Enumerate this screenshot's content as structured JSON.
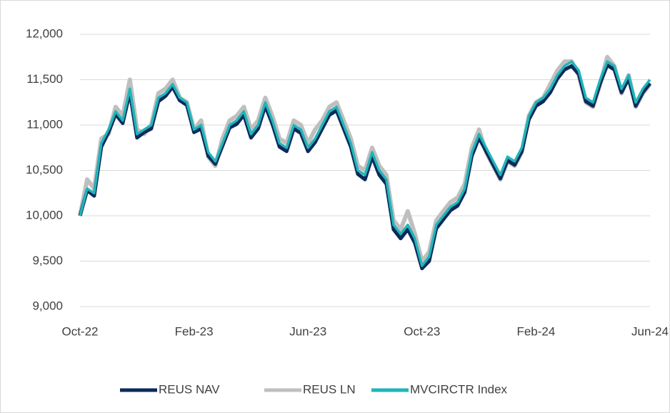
{
  "chart_data": {
    "type": "line",
    "categories": [
      "Oct-22",
      null,
      null,
      null,
      null,
      null,
      null,
      null,
      null,
      null,
      null,
      null,
      null,
      null,
      null,
      null,
      "Feb-23",
      null,
      null,
      null,
      null,
      null,
      null,
      null,
      null,
      null,
      null,
      null,
      null,
      null,
      null,
      null,
      "Jun-23",
      null,
      null,
      null,
      null,
      null,
      null,
      null,
      null,
      null,
      null,
      null,
      null,
      null,
      null,
      null,
      "Oct-23",
      null,
      null,
      null,
      null,
      null,
      null,
      null,
      null,
      null,
      null,
      null,
      null,
      null,
      null,
      null,
      "Feb-24",
      null,
      null,
      null,
      null,
      null,
      null,
      null,
      null,
      null,
      null,
      null,
      null,
      null,
      null,
      null,
      "Jun-24"
    ],
    "series": [
      {
        "name": "REUS LN",
        "color": "#bfbfbf",
        "values": [
          10000,
          10400,
          10300,
          10850,
          10900,
          11200,
          11100,
          11500,
          10950,
          10900,
          11000,
          11350,
          11400,
          11500,
          11300,
          11250,
          10950,
          11050,
          10650,
          10550,
          10850,
          11050,
          11100,
          11200,
          10950,
          11050,
          11300,
          11100,
          10850,
          10800,
          11050,
          11000,
          10800,
          10950,
          11050,
          11200,
          11250,
          11050,
          10850,
          10550,
          10500,
          10750,
          10550,
          10450,
          9950,
          9850,
          10050,
          9800,
          9500,
          9600,
          9950,
          10050,
          10150,
          10200,
          10350,
          10750,
          10950,
          10700,
          10550,
          10400,
          10600,
          10550,
          10700,
          11100,
          11250,
          11300,
          11450,
          11600,
          11700,
          11700,
          11550,
          11250,
          11200,
          11450,
          11750,
          11650,
          11350,
          11550,
          11200,
          11350,
          11450
        ]
      },
      {
        "name": "REUS NAV",
        "color": "#0b2a5b",
        "values": [
          10000,
          10280,
          10220,
          10760,
          10920,
          11120,
          11020,
          11360,
          10860,
          10920,
          10960,
          11260,
          11320,
          11420,
          11270,
          11220,
          10920,
          10960,
          10660,
          10570,
          10770,
          10970,
          11010,
          11110,
          10860,
          10960,
          11210,
          11010,
          10760,
          10710,
          10960,
          10910,
          10710,
          10810,
          10960,
          11110,
          11160,
          10960,
          10760,
          10460,
          10400,
          10650,
          10450,
          10350,
          9850,
          9750,
          9850,
          9700,
          9420,
          9500,
          9860,
          9960,
          10060,
          10110,
          10260,
          10660,
          10860,
          10710,
          10560,
          10410,
          10610,
          10560,
          10710,
          11060,
          11210,
          11260,
          11360,
          11510,
          11610,
          11650,
          11560,
          11260,
          11210,
          11460,
          11660,
          11610,
          11360,
          11510,
          11210,
          11360,
          11460
        ]
      },
      {
        "name": "MVCIRCTR Index",
        "color": "#20b5b8",
        "values": [
          10000,
          10300,
          10250,
          10800,
          10950,
          11150,
          11050,
          11400,
          10900,
          10950,
          11000,
          11300,
          11350,
          11450,
          11300,
          11250,
          10950,
          11000,
          10700,
          10600,
          10800,
          11000,
          11050,
          11150,
          10900,
          11000,
          11250,
          11050,
          10800,
          10750,
          11000,
          10950,
          10750,
          10850,
          11000,
          11150,
          11200,
          11000,
          10800,
          10500,
          10450,
          10700,
          10500,
          10400,
          9900,
          9800,
          9900,
          9750,
          9450,
          9550,
          9900,
          10000,
          10100,
          10150,
          10300,
          10700,
          10900,
          10750,
          10600,
          10450,
          10650,
          10600,
          10750,
          11100,
          11250,
          11300,
          11400,
          11550,
          11650,
          11700,
          11600,
          11300,
          11250,
          11500,
          11700,
          11650,
          11400,
          11550,
          11250,
          11400,
          11500
        ]
      }
    ],
    "ylim": [
      9000,
      12000
    ],
    "yticks": [
      {
        "value": 9000,
        "label": "9,000"
      },
      {
        "value": 9500,
        "label": "9,500"
      },
      {
        "value": 10000,
        "label": "10,000"
      },
      {
        "value": 10500,
        "label": "10,500"
      },
      {
        "value": 11000,
        "label": "11,000"
      },
      {
        "value": 11500,
        "label": "11,500"
      },
      {
        "value": 12000,
        "label": "12,000"
      }
    ],
    "grid": true,
    "legend": "bottom"
  }
}
